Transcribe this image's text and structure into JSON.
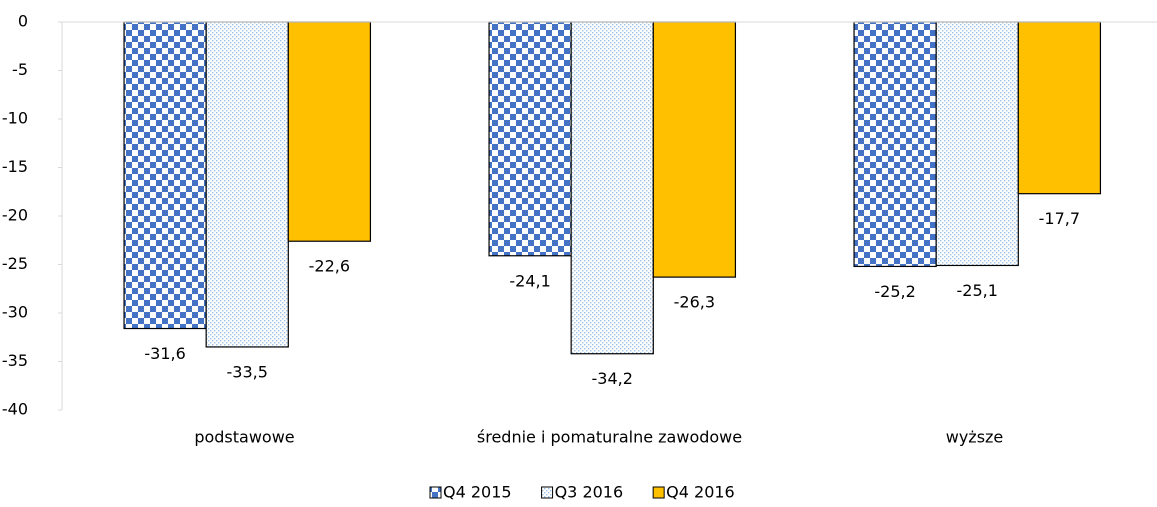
{
  "chart_data": {
    "type": "bar",
    "categories": [
      "podstawowe",
      "średnie i pomaturalne zawodowe",
      "wyższe"
    ],
    "series": [
      {
        "name": "Q4 2015",
        "color": "#4472c4",
        "pattern": "checker",
        "values": [
          -31.6,
          -24.1,
          -25.2
        ],
        "value_labels": [
          "-31,6",
          "-24,1",
          "-25,2"
        ]
      },
      {
        "name": "Q3 2016",
        "color": "#9dc3e6",
        "pattern": "dots",
        "values": [
          -33.5,
          -34.2,
          -25.1
        ],
        "value_labels": [
          "-33,5",
          "-34,2",
          "-25,1"
        ]
      },
      {
        "name": "Q4 2016",
        "color": "#ffc000",
        "pattern": "solid",
        "values": [
          -22.6,
          -26.3,
          -17.7
        ],
        "value_labels": [
          "-22,6",
          "-26,3",
          "-17,7"
        ]
      }
    ],
    "ylim": [
      -40,
      0
    ],
    "yticks": [
      0,
      -5,
      -10,
      -15,
      -20,
      -25,
      -30,
      -35,
      -40
    ],
    "legend": "bottom"
  }
}
